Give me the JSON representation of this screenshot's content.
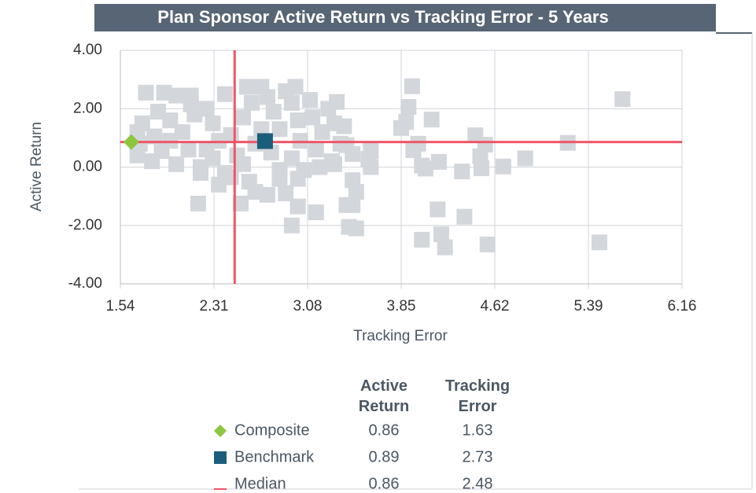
{
  "chart_data": {
    "type": "scatter",
    "title": "Plan Sponsor Active Return vs Tracking Error - 5 Years",
    "xlabel": "Tracking Error",
    "ylabel": "Active Return",
    "xlim": [
      1.54,
      6.16
    ],
    "ylim": [
      -4,
      4
    ],
    "xticks": [
      1.54,
      2.31,
      3.08,
      3.85,
      4.62,
      5.39,
      6.16
    ],
    "yticks": [
      {
        "value": -4,
        "label": "-4.00"
      },
      {
        "value": -2,
        "label": "-2.00"
      },
      {
        "value": 0,
        "label": "0.00"
      },
      {
        "value": 2,
        "label": "2.00"
      },
      {
        "value": 4,
        "label": "4.00"
      }
    ],
    "grid": true,
    "series": [
      {
        "color": "#d3d6db",
        "marker": "square",
        "x": [
          5.67,
          5.22,
          5.48,
          4.87,
          4.69,
          4.46,
          4.54,
          4.5,
          4.51,
          4.56,
          4.37,
          4.35,
          4.18,
          4.21,
          4.15,
          4.16,
          4.02,
          4.1,
          3.94,
          3.91,
          3.85,
          3.89,
          3.99,
          3.95,
          4.02,
          4.05,
          3.6,
          3.58,
          3.6,
          3.45,
          3.48,
          3.45,
          3.4,
          3.42,
          3.48,
          3.4,
          3.3,
          3.45,
          3.15,
          3.0,
          2.95,
          2.53,
          2.18,
          1.75,
          1.9,
          2.0,
          2.12,
          1.72,
          1.68,
          1.7,
          1.68,
          1.8,
          1.85,
          1.95,
          2.05,
          2.1,
          2.2,
          2.0,
          1.95,
          2.15,
          2.25,
          2.3,
          2.35,
          2.3,
          2.4,
          2.45,
          2.4,
          2.5,
          2.55,
          2.58,
          2.62,
          2.6,
          2.7,
          2.75,
          2.8,
          2.78,
          2.85,
          2.85,
          2.9,
          2.95,
          2.98,
          3.0,
          3.02,
          3.05,
          3.0,
          3.1,
          3.12,
          3.15,
          3.2,
          3.25,
          3.3,
          3.32,
          3.35,
          3.28,
          3.38,
          2.2,
          2.45,
          2.35,
          2.65,
          2.75,
          2.9,
          2.85,
          2.55,
          2.12,
          1.82,
          1.88,
          2.25,
          2.7,
          2.95,
          3.18,
          2.65
        ],
        "y": [
          2.33,
          0.83,
          -2.58,
          0.3,
          0.02,
          1.09,
          0.77,
          0.37,
          -0.04,
          -2.65,
          -1.7,
          -0.15,
          -2.3,
          -2.75,
          -1.45,
          0.18,
          -2.49,
          1.63,
          2.77,
          2.06,
          1.34,
          1.55,
          0.8,
          0.58,
          0.05,
          -0.05,
          0.55,
          0.28,
          0.0,
          -0.45,
          -0.85,
          -1.3,
          -1.3,
          -2.05,
          -2.1,
          0.75,
          0.1,
          0.45,
          -1.55,
          -1.35,
          -2.0,
          -1.25,
          -1.25,
          2.55,
          2.55,
          2.45,
          2.15,
          1.5,
          1.2,
          0.8,
          0.4,
          0.2,
          1.9,
          1.6,
          1.2,
          0.6,
          0.0,
          0.1,
          0.9,
          1.8,
          2.0,
          1.5,
          0.9,
          0.3,
          2.5,
          1.1,
          -0.2,
          0.4,
          1.7,
          2.75,
          2.2,
          -0.5,
          2.75,
          2.4,
          1.9,
          0.5,
          1.3,
          -0.1,
          2.6,
          2.2,
          2.75,
          1.6,
          0.9,
          -0.1,
          -0.4,
          2.3,
          1.7,
          0.6,
          1.2,
          2.0,
          1.5,
          2.23,
          0.8,
          0.2,
          1.4,
          -0.2,
          -0.35,
          -0.6,
          -0.85,
          -0.95,
          -0.9,
          -0.4,
          0.1,
          2.45,
          1.05,
          0.55,
          0.6,
          1.3,
          0.3,
          0.0,
          0.8
        ]
      },
      {
        "name": "Composite",
        "color": "#8dc63f",
        "marker": "diamond",
        "x": [
          1.63
        ],
        "y": [
          0.86
        ]
      },
      {
        "name": "Benchmark",
        "color": "#1b5e7b",
        "marker": "square",
        "x": [
          2.73
        ],
        "y": [
          0.89
        ]
      }
    ],
    "median": {
      "name": "Median",
      "color": "#ef5568",
      "x": 2.48,
      "y": 0.86
    },
    "table_headers": [
      "Active Return",
      "Tracking Error"
    ]
  }
}
